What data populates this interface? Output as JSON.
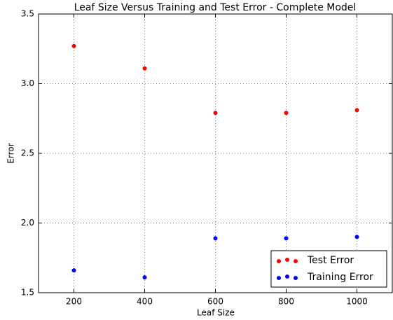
{
  "chart_data": {
    "type": "scatter",
    "title": "Leaf Size Versus Training and Test Error - Complete Model",
    "x_label": "Leaf Size",
    "y_label": "Error",
    "x": [
      200,
      400,
      600,
      800,
      1000
    ],
    "series": [
      {
        "name": "Test Error",
        "color": "#ff0000",
        "values": [
          3.27,
          3.11,
          2.79,
          2.79,
          2.81
        ]
      },
      {
        "name": "Training Error",
        "color": "#0000ff",
        "values": [
          1.66,
          1.61,
          1.89,
          1.89,
          1.9
        ]
      }
    ],
    "xlim": [
      100,
      1100
    ],
    "xticks": [
      200,
      400,
      600,
      800,
      1000
    ],
    "ylim": [
      1.5,
      3.5
    ],
    "yticks": [
      1.5,
      {
        "value": 2.0,
        "label": "2.0"
      },
      2.5,
      {
        "value": 3.0,
        "label": "3.0"
      },
      3.5
    ],
    "grid": true,
    "legend": "lower right"
  }
}
